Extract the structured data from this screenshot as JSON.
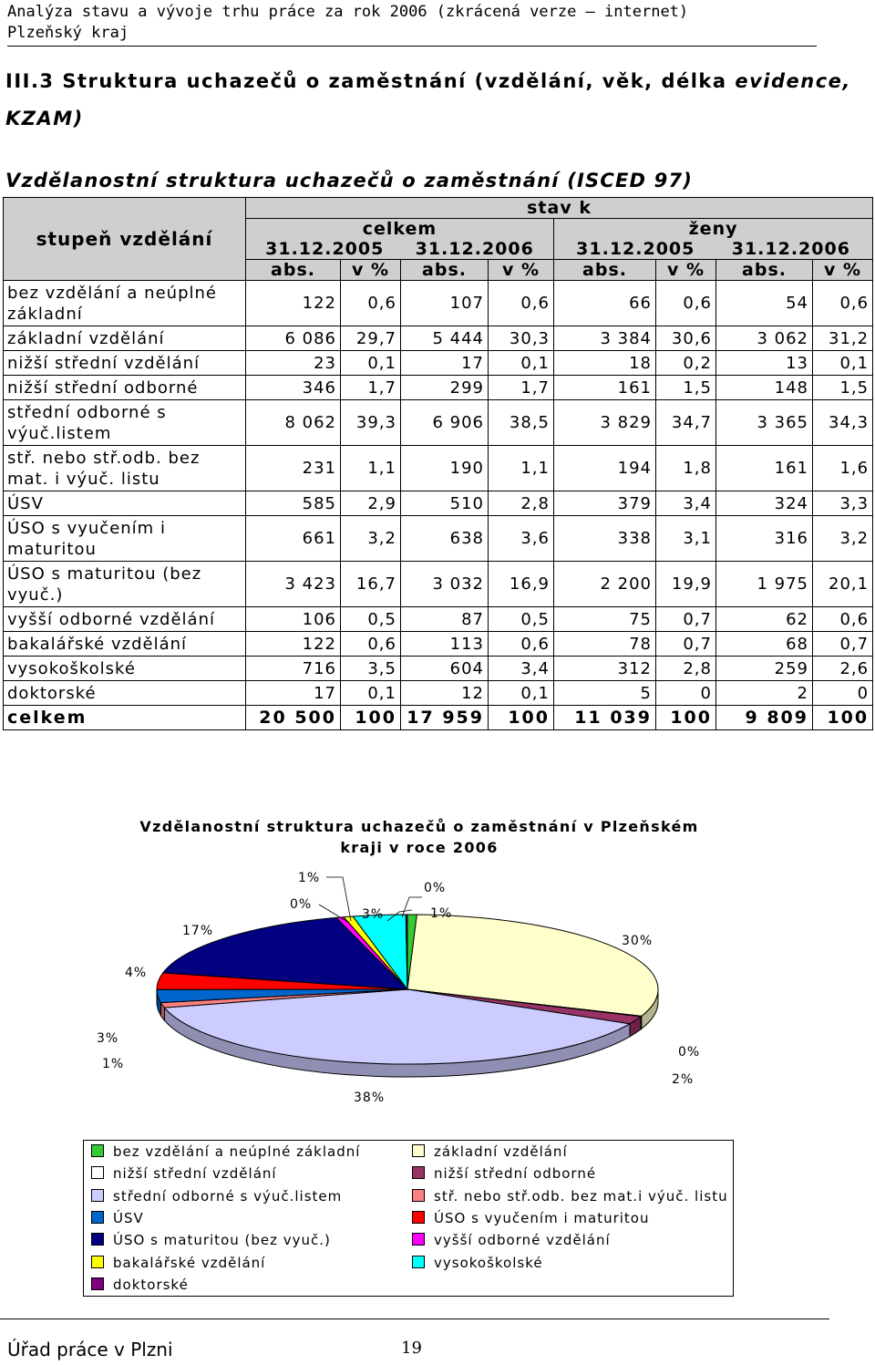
{
  "header": {
    "line1": "Analýza stavu a vývoje trhu práce za rok 2006 (zkrácená verze – internet)",
    "line2": "Plzeňský kraj"
  },
  "section": {
    "title_line1": "III.3 Struktura uchazečů o zaměstnání (vzdělání, věk, délka",
    "title_italic1": "evidence,",
    "title_line2": "KZAM)"
  },
  "table": {
    "title": "Vzdělanostní struktura uchazečů o zaměstnání (ISCED 97)",
    "head": {
      "stupen": "stupeň vzdělání",
      "stav": "stav k",
      "celkem": "celkem",
      "zeny": "ženy",
      "dates": [
        "31.12.2005",
        "31.12.2006",
        "31.12.2005",
        "31.12.2006"
      ],
      "sub": [
        "abs.",
        "v %",
        "abs.",
        "v %",
        "abs.",
        "v %",
        "abs.",
        "v %"
      ]
    },
    "rows": [
      {
        "label": "bez vzdělání a neúplné základní",
        "v": [
          "122",
          "0,6",
          "107",
          "0,6",
          "66",
          "0,6",
          "54",
          "0,6"
        ]
      },
      {
        "label": "základní vzdělání",
        "v": [
          "6 086",
          "29,7",
          "5 444",
          "30,3",
          "3 384",
          "30,6",
          "3 062",
          "31,2"
        ]
      },
      {
        "label": "nižší střední vzdělání",
        "v": [
          "23",
          "0,1",
          "17",
          "0,1",
          "18",
          "0,2",
          "13",
          "0,1"
        ]
      },
      {
        "label": "nižší střední odborné",
        "v": [
          "346",
          "1,7",
          "299",
          "1,7",
          "161",
          "1,5",
          "148",
          "1,5"
        ]
      },
      {
        "label": "střední odborné s výuč.listem",
        "v": [
          "8 062",
          "39,3",
          "6 906",
          "38,5",
          "3 829",
          "34,7",
          "3 365",
          "34,3"
        ]
      },
      {
        "label": "stř. nebo stř.odb. bez mat. i výuč. listu",
        "v": [
          "231",
          "1,1",
          "190",
          "1,1",
          "194",
          "1,8",
          "161",
          "1,6"
        ]
      },
      {
        "label": "ÚSV",
        "v": [
          "585",
          "2,9",
          "510",
          "2,8",
          "379",
          "3,4",
          "324",
          "3,3"
        ]
      },
      {
        "label": "ÚSO s vyučením i maturitou",
        "v": [
          "661",
          "3,2",
          "638",
          "3,6",
          "338",
          "3,1",
          "316",
          "3,2"
        ]
      },
      {
        "label": "ÚSO s maturitou (bez vyuč.)",
        "v": [
          "3 423",
          "16,7",
          "3 032",
          "16,9",
          "2 200",
          "19,9",
          "1 975",
          "20,1"
        ]
      },
      {
        "label": "vyšší odborné vzdělání",
        "v": [
          "106",
          "0,5",
          "87",
          "0,5",
          "75",
          "0,7",
          "62",
          "0,6"
        ]
      },
      {
        "label": "bakalářské vzdělání",
        "v": [
          "122",
          "0,6",
          "113",
          "0,6",
          "78",
          "0,7",
          "68",
          "0,7"
        ]
      },
      {
        "label": "vysokoškolské",
        "v": [
          "716",
          "3,5",
          "604",
          "3,4",
          "312",
          "2,8",
          "259",
          "2,6"
        ]
      },
      {
        "label": "doktorské",
        "v": [
          "17",
          "0,1",
          "12",
          "0,1",
          "5",
          "0",
          "2",
          "0"
        ]
      }
    ],
    "total": {
      "label": "celkem",
      "v": [
        "20 500",
        "100",
        "17 959",
        "100",
        "11 039",
        "100",
        "9 809",
        "100"
      ]
    }
  },
  "chart": {
    "title_line1": "Vzdělanostní struktura uchazečů o zaměstnání v Plzeňském",
    "title_line2": "kraji v roce 2006",
    "colors": [
      "#33cc33",
      "#ffffcc",
      "#ffffff",
      "#993366",
      "#ccccff",
      "#ff8080",
      "#0066cc",
      "#ff0000",
      "#000080",
      "#ff00ff",
      "#ffff00",
      "#00ffff",
      "#800080"
    ],
    "legend": [
      "bez vzdělání a neúplné základní",
      "základní vzdělání",
      "nižší střední vzdělání",
      "nižší střední odborné",
      "střední odborné s výuč.listem",
      "stř. nebo stř.odb. bez mat.i výuč. listu",
      "ÚSV",
      "ÚSO s vyučením i maturitou",
      "ÚSO s maturitou (bez vyuč.)",
      "vyšší odborné vzdělání",
      "bakalářské vzdělání",
      "vysokoškolské",
      "doktorské"
    ],
    "labels": [
      "1%",
      "0%",
      "0%",
      "3%",
      "1%",
      "30%",
      "17%",
      "4%",
      "3%",
      "1%",
      "0%",
      "2%",
      "38%"
    ]
  },
  "chart_data": {
    "type": "pie",
    "title": "Vzdělanostní struktura uchazečů o zaměstnání v Plzeňském kraji v roce 2006",
    "categories": [
      "bez vzdělání a neúplné základní",
      "základní vzdělání",
      "nižší střední vzdělání",
      "nižší střední odborné",
      "střední odborné s výuč.listem",
      "stř. nebo stř.odb. bez mat.i výuč. listu",
      "ÚSV",
      "ÚSO s vyučením i maturitou",
      "ÚSO s maturitou (bez vyuč.)",
      "vyšší odborné vzdělání",
      "bakalářské vzdělání",
      "vysokoškolské",
      "doktorské"
    ],
    "values": [
      0.6,
      30.3,
      0.1,
      1.7,
      38.5,
      1.1,
      2.8,
      3.6,
      16.9,
      0.5,
      0.6,
      3.4,
      0.1
    ],
    "legend": "bottom"
  },
  "footer": {
    "office": "Úřad práce v Plzni",
    "page": "19"
  }
}
